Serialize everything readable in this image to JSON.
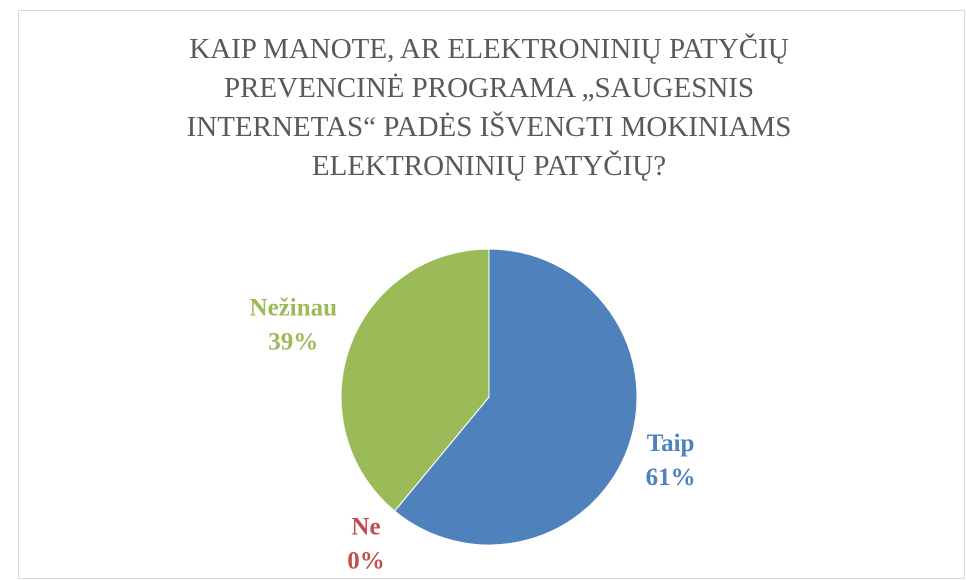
{
  "chart_data": {
    "type": "pie",
    "title": "KAIP MANOTE, AR ELEKTRONINIŲ PATYČIŲ PREVENCINĖ PROGRAMA „SAUGESNIS INTERNETAS“ PADĖS IŠVENGTI MOKINIAMS ELEKTRONINIŲ PATYČIŲ?",
    "categories": [
      "Taip",
      "Ne",
      "Nežinau"
    ],
    "values": [
      61,
      0,
      39
    ],
    "value_labels": [
      "61%",
      "0%",
      "39%"
    ],
    "colors": [
      "#4f81bd",
      "#c0504d",
      "#9bbb59"
    ]
  }
}
